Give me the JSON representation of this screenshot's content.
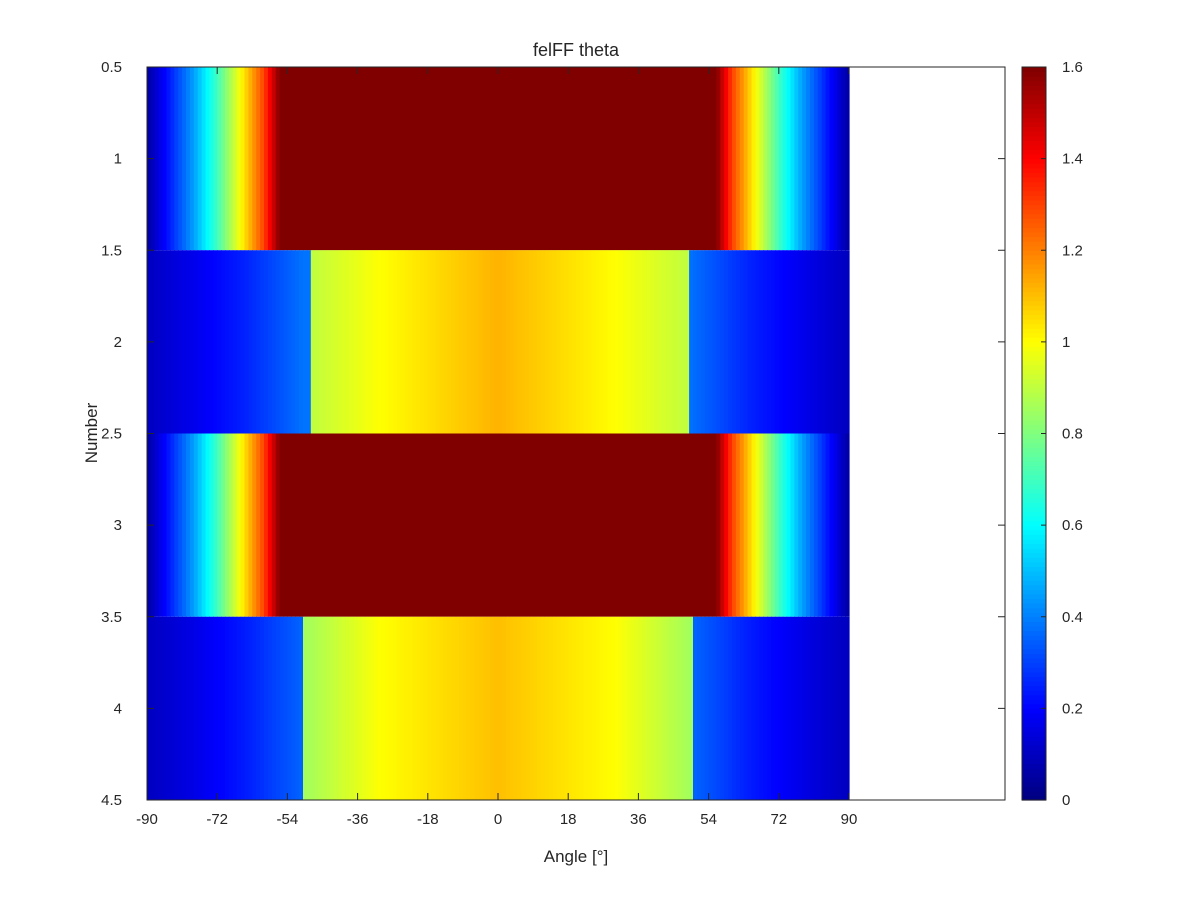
{
  "chart_data": {
    "type": "heatmap",
    "title": "felFF theta",
    "xlabel": "Angle [°]",
    "ylabel": "Number",
    "xlim": [
      -90,
      130
    ],
    "ylim": [
      0.5,
      4.5
    ],
    "y_direction": "reverse",
    "x_ticks": [
      -90,
      -72,
      -54,
      -36,
      -18,
      0,
      18,
      36,
      54,
      72,
      90
    ],
    "y_ticks": [
      0.5,
      1,
      1.5,
      2,
      2.5,
      3,
      3.5,
      4,
      4.5
    ],
    "colormap": "jet",
    "color_limits": [
      0,
      1.6
    ],
    "colorbar_ticks": [
      0,
      0.2,
      0.4,
      0.6,
      0.8,
      1,
      1.2,
      1.4,
      1.6
    ],
    "angle_range": [
      -90,
      90
    ],
    "rows": [
      {
        "number": 1,
        "profile": [
          [
            -90,
            0.05
          ],
          [
            -84,
            0.25
          ],
          [
            -78,
            0.45
          ],
          [
            -72,
            0.7
          ],
          [
            -66,
            1.0
          ],
          [
            -60,
            1.3
          ],
          [
            -56,
            1.6
          ],
          [
            56,
            1.6
          ],
          [
            60,
            1.3
          ],
          [
            66,
            1.0
          ],
          [
            72,
            0.7
          ],
          [
            78,
            0.45
          ],
          [
            84,
            0.25
          ],
          [
            90,
            0.05
          ]
        ]
      },
      {
        "number": 2,
        "profile": [
          [
            -90,
            0.1
          ],
          [
            -80,
            0.16
          ],
          [
            -65,
            0.25
          ],
          [
            -50,
            0.38
          ],
          [
            -48,
            0.38
          ],
          [
            -47.9,
            0.9
          ],
          [
            -30,
            1.0
          ],
          [
            0,
            1.12
          ],
          [
            30,
            1.0
          ],
          [
            48.9,
            0.9
          ],
          [
            49,
            0.38
          ],
          [
            65,
            0.25
          ],
          [
            80,
            0.16
          ],
          [
            90,
            0.1
          ]
        ]
      },
      {
        "number": 3,
        "profile": [
          [
            -90,
            0.05
          ],
          [
            -84,
            0.25
          ],
          [
            -78,
            0.45
          ],
          [
            -72,
            0.7
          ],
          [
            -66,
            1.0
          ],
          [
            -60,
            1.3
          ],
          [
            -56,
            1.6
          ],
          [
            56,
            1.6
          ],
          [
            60,
            1.3
          ],
          [
            66,
            1.0
          ],
          [
            72,
            0.7
          ],
          [
            78,
            0.45
          ],
          [
            84,
            0.25
          ],
          [
            90,
            0.05
          ]
        ]
      },
      {
        "number": 4,
        "profile": [
          [
            -90,
            0.1
          ],
          [
            -80,
            0.15
          ],
          [
            -65,
            0.24
          ],
          [
            -50,
            0.36
          ],
          [
            -50.1,
            0.36
          ],
          [
            -50,
            0.85
          ],
          [
            -30,
            1.0
          ],
          [
            0,
            1.1
          ],
          [
            30,
            1.0
          ],
          [
            49.9,
            0.85
          ],
          [
            50,
            0.36
          ],
          [
            65,
            0.24
          ],
          [
            80,
            0.15
          ],
          [
            90,
            0.1
          ]
        ]
      }
    ]
  }
}
